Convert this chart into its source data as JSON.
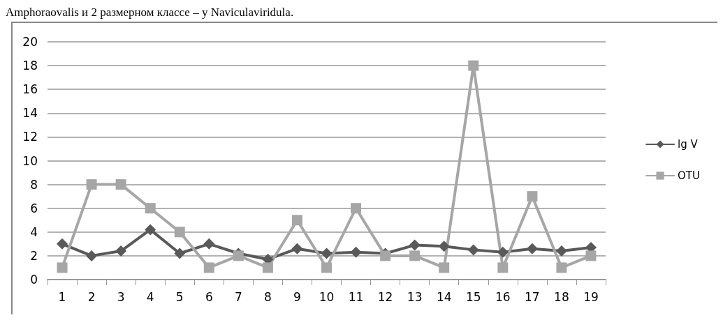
{
  "chart_data": {
    "type": "line",
    "annotations": [
      "Amphoraovalis и 2 размерном классе – у Naviculaviridula."
    ],
    "categories": [
      "1",
      "2",
      "3",
      "4",
      "5",
      "6",
      "7",
      "8",
      "9",
      "10",
      "11",
      "12",
      "13",
      "14",
      "15",
      "16",
      "17",
      "18",
      "19"
    ],
    "series": [
      {
        "name": "lg V",
        "color": "#595959",
        "marker": "diamond",
        "values": [
          3,
          2,
          2.4,
          4.2,
          2.2,
          3,
          2.2,
          1.7,
          2.6,
          2.2,
          2.3,
          2.2,
          2.9,
          2.8,
          2.5,
          2.3,
          2.6,
          2.4,
          2.7
        ]
      },
      {
        "name": "OTU",
        "color": "#a6a6a6",
        "marker": "square",
        "values": [
          1,
          8,
          8,
          6,
          4,
          1,
          2,
          1,
          5,
          1,
          6,
          2,
          2,
          1,
          18,
          1,
          7,
          1,
          2
        ]
      }
    ],
    "ylim": [
      0,
      20
    ],
    "yticks": [
      0,
      2,
      4,
      6,
      8,
      10,
      12,
      14,
      16,
      18,
      20
    ],
    "grid": "y",
    "legend": "right",
    "line_style": "solid"
  }
}
